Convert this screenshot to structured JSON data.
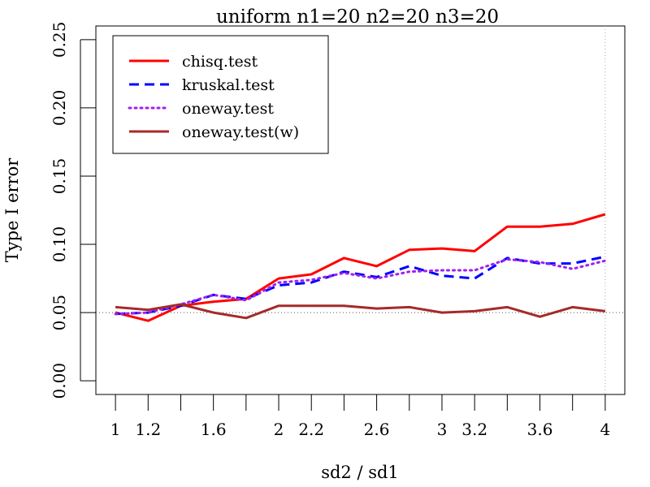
{
  "chart_data": {
    "type": "line",
    "title": "uniform n1=20 n2=20 n3=20",
    "xlabel": "sd2 / sd1",
    "ylabel": "Type I error",
    "x": [
      1.0,
      1.2,
      1.4,
      1.6,
      1.8,
      2.0,
      2.2,
      2.4,
      2.6,
      2.8,
      3.0,
      3.2,
      3.4,
      3.6,
      3.8,
      4.0
    ],
    "xticks": [
      1,
      1.2,
      1.6,
      2,
      2.2,
      2.6,
      3,
      3.2,
      3.6,
      4
    ],
    "xtick_labels": [
      "1",
      "1.2",
      "1.6",
      "2",
      "2.2",
      "2.6",
      "3",
      "3.2",
      "3.6",
      "4"
    ],
    "yticks": [
      0.0,
      0.05,
      0.1,
      0.15,
      0.2,
      0.25
    ],
    "ytick_labels": [
      "0.00",
      "0.05",
      "0.10",
      "0.15",
      "0.20",
      "0.25"
    ],
    "xlim": [
      0.88,
      4.12
    ],
    "ylim": [
      -0.01,
      0.26
    ],
    "reference_y": 0.05,
    "reference_x": 4,
    "series": [
      {
        "name": "chisq.test",
        "color": "#ff0000",
        "dash": "solid",
        "values": [
          0.05,
          0.044,
          0.055,
          0.058,
          0.06,
          0.075,
          0.078,
          0.09,
          0.084,
          0.096,
          0.097,
          0.095,
          0.113,
          0.113,
          0.115,
          0.122
        ]
      },
      {
        "name": "kruskal.test",
        "color": "#0000ff",
        "dash": "dashed",
        "values": [
          0.049,
          0.05,
          0.055,
          0.063,
          0.06,
          0.07,
          0.072,
          0.08,
          0.076,
          0.084,
          0.077,
          0.075,
          0.09,
          0.086,
          0.086,
          0.091
        ]
      },
      {
        "name": "oneway.test",
        "color": "#a020f0",
        "dash": "dotted",
        "values": [
          0.049,
          0.05,
          0.056,
          0.063,
          0.059,
          0.072,
          0.074,
          0.079,
          0.075,
          0.08,
          0.081,
          0.081,
          0.089,
          0.087,
          0.082,
          0.088
        ]
      },
      {
        "name": "oneway.test(w)",
        "color": "#a52a2a",
        "dash": "solid",
        "values": [
          0.054,
          0.052,
          0.056,
          0.05,
          0.046,
          0.055,
          0.055,
          0.055,
          0.053,
          0.054,
          0.05,
          0.051,
          0.054,
          0.047,
          0.054,
          0.051
        ]
      }
    ],
    "legend_position": "top-left",
    "grid": false
  }
}
